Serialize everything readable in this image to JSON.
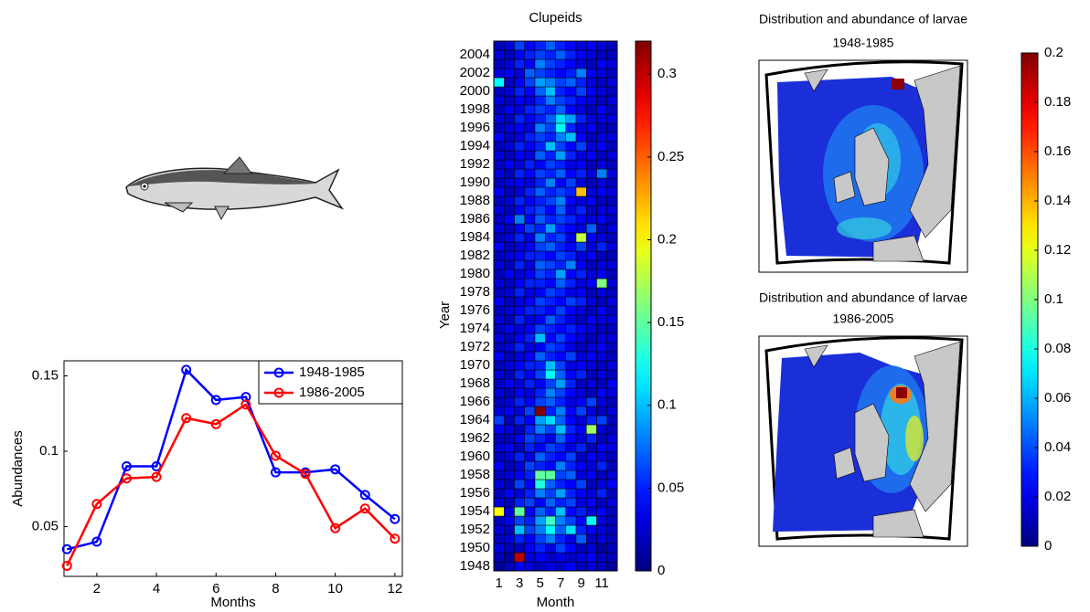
{
  "chart_data": [
    {
      "type": "line",
      "xlabel": "Months",
      "ylabel": "Abundances",
      "x": [
        1,
        2,
        3,
        4,
        5,
        6,
        7,
        8,
        9,
        10,
        11,
        12
      ],
      "series": [
        {
          "name": "1948-1985",
          "color": "#0000ff",
          "values": [
            0.035,
            0.04,
            0.09,
            0.09,
            0.154,
            0.134,
            0.136,
            0.086,
            0.086,
            0.088,
            0.071,
            0.055
          ]
        },
        {
          "name": "1986-2005",
          "color": "#ff0000",
          "values": [
            0.024,
            0.065,
            0.082,
            0.083,
            0.122,
            0.118,
            0.131,
            0.097,
            0.085,
            0.049,
            0.062,
            0.042
          ]
        }
      ],
      "xlim": [
        0.9,
        12.25
      ],
      "ylim": [
        0.017,
        0.16
      ],
      "xticks": [
        2,
        4,
        6,
        8,
        10,
        12
      ],
      "yticks": [
        0.05,
        0.1,
        0.15
      ],
      "grid": false,
      "legend": "upper right"
    },
    {
      "type": "heatmap",
      "title": "Clupeids",
      "xlabel": "Month",
      "ylabel": "Year",
      "colormap": "jet",
      "x_categories": [
        1,
        null,
        3,
        null,
        5,
        null,
        7,
        null,
        9,
        null,
        11,
        null
      ],
      "y_categories": [
        1948,
        null,
        1950,
        null,
        1952,
        null,
        1954,
        null,
        1956,
        null,
        1958,
        null,
        1960,
        null,
        1962,
        null,
        1964,
        null,
        1966,
        null,
        1968,
        null,
        1970,
        null,
        1972,
        null,
        1974,
        null,
        1976,
        null,
        1978,
        null,
        1980,
        null,
        1982,
        null,
        1984,
        null,
        1986,
        null,
        1988,
        null,
        1990,
        null,
        1992,
        null,
        1994,
        null,
        1996,
        null,
        1998,
        null,
        2000,
        null,
        2002,
        null,
        2004,
        null
      ],
      "z": [
        [
          0.01,
          0.02,
          0.04,
          0.03,
          0.02,
          0.03,
          0.02,
          0.04,
          0.02,
          0.03,
          0.02,
          0.01
        ],
        [
          0.02,
          0.01,
          0.3,
          0.03,
          0.04,
          0.02,
          0.03,
          0.02,
          0.03,
          0.04,
          0.02,
          0.02
        ],
        [
          0.03,
          0.02,
          0.02,
          0.04,
          0.05,
          0.03,
          0.06,
          0.04,
          0.02,
          0.03,
          0.01,
          0.02
        ],
        [
          0.02,
          0.03,
          0.05,
          0.04,
          0.06,
          0.08,
          0.05,
          0.03,
          0.07,
          0.02,
          0.03,
          0.02
        ],
        [
          0.03,
          0.02,
          0.1,
          0.06,
          0.08,
          0.12,
          0.07,
          0.11,
          0.05,
          0.04,
          0.03,
          0.02
        ],
        [
          0.02,
          0.04,
          0.06,
          0.05,
          0.09,
          0.14,
          0.08,
          0.06,
          0.04,
          0.12,
          0.03,
          0.02
        ],
        [
          0.2,
          0.03,
          0.15,
          0.04,
          0.07,
          0.05,
          0.1,
          0.04,
          0.05,
          0.03,
          0.04,
          0.02
        ],
        [
          0.03,
          0.02,
          0.05,
          0.06,
          0.04,
          0.07,
          0.05,
          0.06,
          0.03,
          0.04,
          0.02,
          0.03
        ],
        [
          0.02,
          0.04,
          0.03,
          0.05,
          0.08,
          0.06,
          0.09,
          0.05,
          0.04,
          0.03,
          0.05,
          0.02
        ],
        [
          0.03,
          0.02,
          0.06,
          0.04,
          0.13,
          0.07,
          0.05,
          0.04,
          0.06,
          0.02,
          0.03,
          0.04
        ],
        [
          0.02,
          0.03,
          0.04,
          0.05,
          0.15,
          0.15,
          0.06,
          0.07,
          0.03,
          0.04,
          0.02,
          0.03
        ],
        [
          0.04,
          0.02,
          0.03,
          0.06,
          0.05,
          0.04,
          0.08,
          0.05,
          0.04,
          0.03,
          0.05,
          0.02
        ],
        [
          0.02,
          0.03,
          0.05,
          0.03,
          0.07,
          0.05,
          0.04,
          0.06,
          0.02,
          0.04,
          0.03,
          0.02
        ],
        [
          0.03,
          0.04,
          0.02,
          0.05,
          0.04,
          0.06,
          0.05,
          0.03,
          0.05,
          0.02,
          0.04,
          0.03
        ],
        [
          0.02,
          0.02,
          0.04,
          0.06,
          0.05,
          0.03,
          0.07,
          0.04,
          0.03,
          0.05,
          0.02,
          0.03
        ],
        [
          0.04,
          0.03,
          0.02,
          0.05,
          0.08,
          0.06,
          0.1,
          0.05,
          0.04,
          0.17,
          0.03,
          0.02
        ],
        [
          0.06,
          0.02,
          0.05,
          0.04,
          0.09,
          0.11,
          0.07,
          0.04,
          0.03,
          0.05,
          0.06,
          0.02
        ],
        [
          0.03,
          0.04,
          0.03,
          0.06,
          0.32,
          0.05,
          0.08,
          0.04,
          0.06,
          0.03,
          0.02,
          0.03
        ],
        [
          0.02,
          0.03,
          0.05,
          0.04,
          0.06,
          0.07,
          0.05,
          0.03,
          0.04,
          0.06,
          0.03,
          0.02
        ],
        [
          0.03,
          0.02,
          0.04,
          0.03,
          0.05,
          0.08,
          0.06,
          0.04,
          0.03,
          0.02,
          0.04,
          0.03
        ],
        [
          0.02,
          0.04,
          0.03,
          0.05,
          0.04,
          0.06,
          0.09,
          0.05,
          0.02,
          0.03,
          0.02,
          0.04
        ],
        [
          0.03,
          0.02,
          0.05,
          0.04,
          0.06,
          0.12,
          0.07,
          0.04,
          0.05,
          0.02,
          0.03,
          0.02
        ],
        [
          0.02,
          0.03,
          0.04,
          0.05,
          0.05,
          0.1,
          0.06,
          0.03,
          0.04,
          0.03,
          0.02,
          0.03
        ],
        [
          0.04,
          0.02,
          0.03,
          0.04,
          0.07,
          0.05,
          0.04,
          0.06,
          0.03,
          0.04,
          0.03,
          0.02
        ],
        [
          0.02,
          0.03,
          0.05,
          0.03,
          0.04,
          0.06,
          0.05,
          0.03,
          0.02,
          0.03,
          0.04,
          0.02
        ],
        [
          0.03,
          0.02,
          0.04,
          0.05,
          0.1,
          0.04,
          0.06,
          0.04,
          0.03,
          0.02,
          0.03,
          0.03
        ],
        [
          0.02,
          0.04,
          0.03,
          0.04,
          0.06,
          0.05,
          0.04,
          0.05,
          0.04,
          0.03,
          0.02,
          0.02
        ],
        [
          0.03,
          0.02,
          0.05,
          0.03,
          0.04,
          0.07,
          0.05,
          0.03,
          0.02,
          0.04,
          0.03,
          0.03
        ],
        [
          0.02,
          0.03,
          0.04,
          0.05,
          0.05,
          0.04,
          0.06,
          0.04,
          0.03,
          0.02,
          0.04,
          0.02
        ],
        [
          0.04,
          0.02,
          0.03,
          0.04,
          0.06,
          0.05,
          0.04,
          0.06,
          0.05,
          0.03,
          0.02,
          0.03
        ],
        [
          0.02,
          0.03,
          0.05,
          0.03,
          0.04,
          0.06,
          0.05,
          0.03,
          0.04,
          0.02,
          0.03,
          0.02
        ],
        [
          0.03,
          0.02,
          0.04,
          0.05,
          0.05,
          0.04,
          0.07,
          0.05,
          0.03,
          0.04,
          0.16,
          0.03
        ],
        [
          0.02,
          0.04,
          0.03,
          0.04,
          0.06,
          0.05,
          0.09,
          0.04,
          0.05,
          0.03,
          0.04,
          0.02
        ],
        [
          0.03,
          0.02,
          0.05,
          0.03,
          0.07,
          0.06,
          0.05,
          0.08,
          0.04,
          0.02,
          0.03,
          0.03
        ],
        [
          0.02,
          0.03,
          0.04,
          0.05,
          0.05,
          0.04,
          0.06,
          0.05,
          0.03,
          0.04,
          0.02,
          0.02
        ],
        [
          0.04,
          0.02,
          0.03,
          0.04,
          0.06,
          0.07,
          0.05,
          0.04,
          0.06,
          0.03,
          0.05,
          0.03
        ],
        [
          0.02,
          0.03,
          0.05,
          0.03,
          0.08,
          0.05,
          0.06,
          0.03,
          0.18,
          0.04,
          0.03,
          0.02
        ],
        [
          0.03,
          0.02,
          0.04,
          0.06,
          0.05,
          0.09,
          0.05,
          0.04,
          0.03,
          0.07,
          0.02,
          0.03
        ],
        [
          0.02,
          0.04,
          0.08,
          0.04,
          0.07,
          0.05,
          0.06,
          0.05,
          0.04,
          0.03,
          0.04,
          0.02
        ],
        [
          0.03,
          0.02,
          0.04,
          0.05,
          0.06,
          0.04,
          0.07,
          0.03,
          0.05,
          0.02,
          0.03,
          0.03
        ],
        [
          0.02,
          0.03,
          0.05,
          0.04,
          0.05,
          0.06,
          0.08,
          0.04,
          0.03,
          0.04,
          0.02,
          0.02
        ],
        [
          0.04,
          0.02,
          0.03,
          0.05,
          0.07,
          0.05,
          0.06,
          0.05,
          0.22,
          0.03,
          0.04,
          0.03
        ],
        [
          0.02,
          0.03,
          0.04,
          0.03,
          0.05,
          0.08,
          0.04,
          0.06,
          0.03,
          0.02,
          0.03,
          0.02
        ],
        [
          0.03,
          0.02,
          0.05,
          0.04,
          0.06,
          0.05,
          0.07,
          0.04,
          0.05,
          0.03,
          0.08,
          0.03
        ],
        [
          0.02,
          0.04,
          0.03,
          0.05,
          0.04,
          0.06,
          0.05,
          0.03,
          0.04,
          0.02,
          0.03,
          0.02
        ],
        [
          0.03,
          0.02,
          0.04,
          0.03,
          0.07,
          0.05,
          0.09,
          0.05,
          0.03,
          0.04,
          0.02,
          0.03
        ],
        [
          0.02,
          0.03,
          0.05,
          0.04,
          0.05,
          0.1,
          0.06,
          0.04,
          0.06,
          0.03,
          0.04,
          0.02
        ],
        [
          0.04,
          0.02,
          0.03,
          0.05,
          0.06,
          0.05,
          0.08,
          0.1,
          0.04,
          0.02,
          0.03,
          0.03
        ],
        [
          0.02,
          0.03,
          0.04,
          0.03,
          0.08,
          0.06,
          0.12,
          0.05,
          0.03,
          0.04,
          0.02,
          0.02
        ],
        [
          0.03,
          0.02,
          0.05,
          0.04,
          0.05,
          0.07,
          0.11,
          0.09,
          0.05,
          0.03,
          0.03,
          0.03
        ],
        [
          0.02,
          0.04,
          0.03,
          0.05,
          0.06,
          0.05,
          0.07,
          0.04,
          0.03,
          0.02,
          0.04,
          0.02
        ],
        [
          0.03,
          0.02,
          0.04,
          0.03,
          0.05,
          0.08,
          0.06,
          0.05,
          0.04,
          0.03,
          0.02,
          0.03
        ],
        [
          0.02,
          0.03,
          0.05,
          0.04,
          0.07,
          0.1,
          0.05,
          0.04,
          0.06,
          0.04,
          0.03,
          0.02
        ],
        [
          0.12,
          0.02,
          0.04,
          0.06,
          0.09,
          0.08,
          0.06,
          0.07,
          0.05,
          0.03,
          0.02,
          0.03
        ],
        [
          0.03,
          0.04,
          0.03,
          0.07,
          0.06,
          0.05,
          0.04,
          0.05,
          0.08,
          0.04,
          0.03,
          0.02
        ],
        [
          0.02,
          0.03,
          0.05,
          0.04,
          0.08,
          0.06,
          0.05,
          0.04,
          0.03,
          0.02,
          0.04,
          0.03
        ],
        [
          0.03,
          0.02,
          0.04,
          0.05,
          0.06,
          0.05,
          0.07,
          0.05,
          0.04,
          0.03,
          0.02,
          0.02
        ],
        [
          0.02,
          0.03,
          0.06,
          0.04,
          0.05,
          0.07,
          0.05,
          0.04,
          0.03,
          0.04,
          0.03,
          0.02
        ]
      ],
      "clim": [
        0,
        0.32
      ],
      "cticks": [
        0,
        0.05,
        0.1,
        0.15,
        0.2,
        0.25,
        0.3
      ]
    },
    {
      "type": "map",
      "colormap": "jet",
      "panels": [
        {
          "title": "Distribution and abundance of larvae",
          "subtitle": "1948-1985"
        },
        {
          "title": "Distribution and abundance of larvae",
          "subtitle": "1986-2005"
        }
      ],
      "clim": [
        0,
        0.2
      ],
      "cticks": [
        0,
        0.02,
        0.04,
        0.06,
        0.08,
        0.1,
        0.12,
        0.14,
        0.16,
        0.18,
        0.2
      ]
    }
  ]
}
